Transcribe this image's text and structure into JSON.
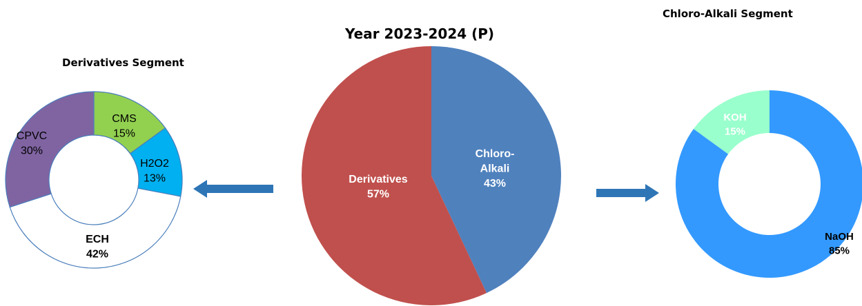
{
  "titles": {
    "main": "Year 2023-2024 (P)",
    "left": "Derivatives Segment",
    "right": "Chloro-Alkali Segment"
  },
  "chart_data": [
    {
      "type": "pie",
      "title": "Year 2023-2024 (P)",
      "slices": [
        {
          "label": "Chloro-Alkali",
          "value": 43,
          "text": "43%",
          "color": "#4f81bd",
          "label_color": "#ffffff"
        },
        {
          "label": "Derivatives",
          "value": 57,
          "text": "57%",
          "color": "#c0504d",
          "label_color": "#ffffff"
        }
      ]
    },
    {
      "type": "pie",
      "subtype": "donut",
      "title": "Derivatives Segment",
      "slices": [
        {
          "label": "CMS",
          "value": 15,
          "text": "15%",
          "color": "#92d050",
          "label_color": "#000000"
        },
        {
          "label": "H2O2",
          "value": 13,
          "text": "13%",
          "color": "#00b0f0",
          "label_color": "#000000"
        },
        {
          "label": "ECH",
          "value": 42,
          "text": "42%",
          "color": "#ffffff",
          "label_color": "#000000"
        },
        {
          "label": "CPVC",
          "value": 30,
          "text": "30%",
          "color": "#8064a2",
          "label_color": "#000000"
        }
      ]
    },
    {
      "type": "pie",
      "subtype": "donut",
      "title": "Chloro-Alkali Segment",
      "slices": [
        {
          "label": "NaOH",
          "value": 85,
          "text": "85%",
          "color": "#3399ff",
          "label_color": "#000000"
        },
        {
          "label": "KOH",
          "value": 15,
          "text": "15%",
          "color": "#99ffcc",
          "label_color": "#ffffff"
        }
      ]
    }
  ],
  "colors": {
    "arrow": "#2e75b6",
    "donut_outline": "#4a7ebb"
  }
}
